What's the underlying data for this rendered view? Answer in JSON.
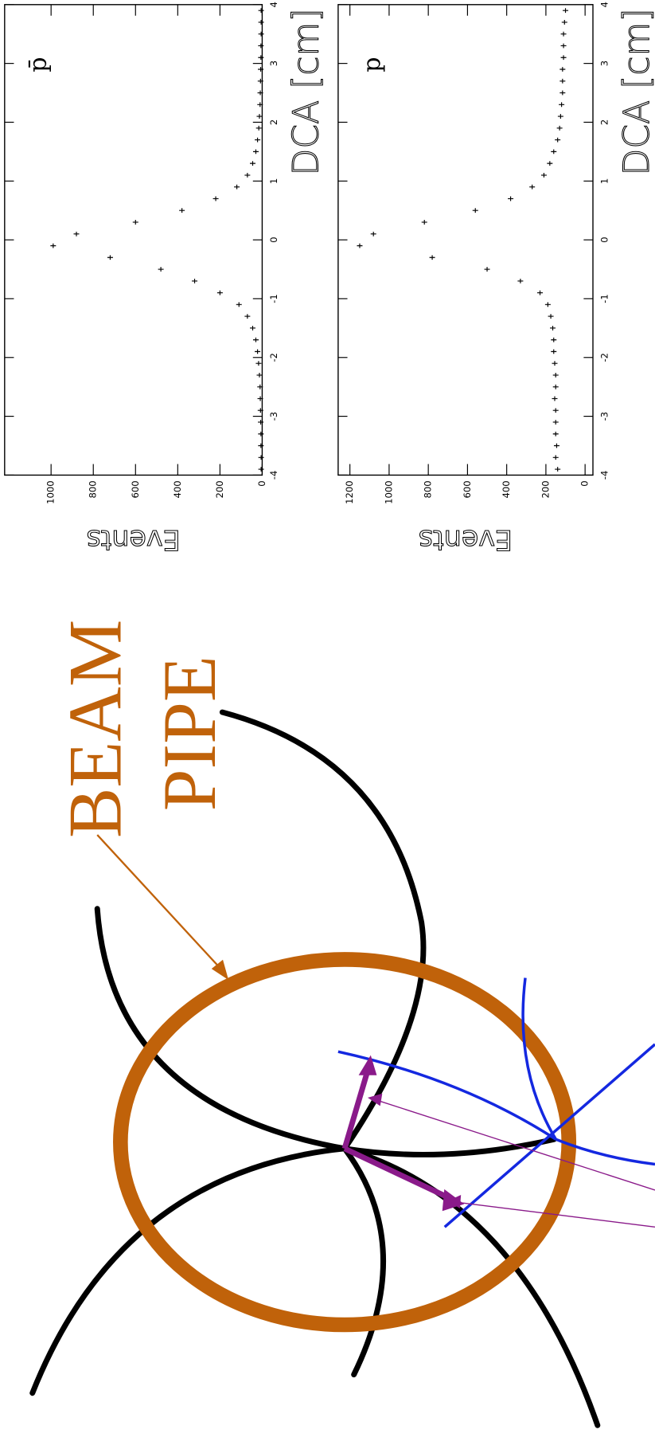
{
  "chart_data": [
    {
      "type": "scatter",
      "label": "p̄",
      "xlabel": "DCA [cm]",
      "ylabel": "Events",
      "color": "#000000",
      "x": [
        -3.9,
        -3.7,
        -3.5,
        -3.3,
        -3.1,
        -2.9,
        -2.7,
        -2.5,
        -2.3,
        -2.1,
        -1.9,
        -1.7,
        -1.5,
        -1.3,
        -1.1,
        -0.9,
        -0.7,
        -0.5,
        -0.3,
        -0.1,
        0.1,
        0.3,
        0.5,
        0.7,
        0.9,
        1.1,
        1.3,
        1.5,
        1.7,
        1.9,
        2.1,
        2.3,
        2.5,
        2.7,
        2.9,
        3.1,
        3.3,
        3.5,
        3.7,
        3.9
      ],
      "values": [
        5,
        5,
        6,
        6,
        7,
        8,
        9,
        10,
        13,
        17,
        22,
        30,
        45,
        70,
        110,
        200,
        320,
        480,
        720,
        990,
        880,
        600,
        380,
        220,
        120,
        70,
        45,
        30,
        22,
        16,
        13,
        10,
        9,
        8,
        7,
        6,
        6,
        5,
        5,
        5
      ],
      "xlim": [
        -4,
        4
      ],
      "xticks": [
        -4,
        -3,
        -2,
        -1,
        0,
        1,
        2,
        3,
        4
      ],
      "ylim": [
        0,
        1220
      ],
      "yticks": [
        0,
        200,
        400,
        600,
        800,
        1000
      ]
    },
    {
      "type": "scatter",
      "label": "p",
      "xlabel": "DCA [cm]",
      "ylabel": "Events",
      "color": "#000000",
      "x": [
        -3.9,
        -3.7,
        -3.5,
        -3.3,
        -3.1,
        -2.9,
        -2.7,
        -2.5,
        -2.3,
        -2.1,
        -1.9,
        -1.7,
        -1.5,
        -1.3,
        -1.1,
        -0.9,
        -0.7,
        -0.5,
        -0.3,
        -0.1,
        0.1,
        0.3,
        0.5,
        0.7,
        0.9,
        1.1,
        1.3,
        1.5,
        1.7,
        1.9,
        2.1,
        2.3,
        2.5,
        2.7,
        2.9,
        3.1,
        3.3,
        3.5,
        3.7,
        3.9
      ],
      "values": [
        140,
        150,
        145,
        150,
        150,
        150,
        155,
        150,
        150,
        155,
        160,
        160,
        165,
        175,
        190,
        230,
        330,
        500,
        780,
        1150,
        1080,
        820,
        560,
        380,
        270,
        210,
        180,
        160,
        140,
        130,
        125,
        120,
        115,
        115,
        115,
        110,
        110,
        110,
        105,
        100
      ],
      "xlim": [
        -4,
        4
      ],
      "xticks": [
        -4,
        -3,
        -2,
        -1,
        0,
        1,
        2,
        3,
        4
      ],
      "ylim": [
        -40,
        1260
      ],
      "yticks": [
        0,
        200,
        400,
        600,
        800,
        1000,
        1200
      ]
    }
  ],
  "diagram": {
    "label": [
      "BEAM",
      "PIPE"
    ]
  }
}
